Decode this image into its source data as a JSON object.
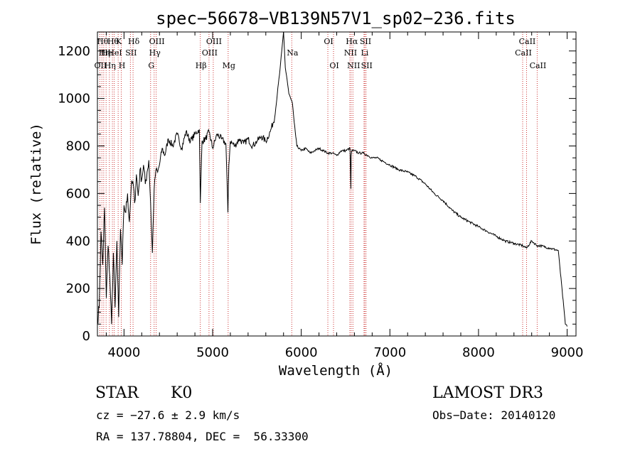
{
  "chart_data": {
    "type": "line",
    "title": "spec−56678−VB139N57V1_sp02−236.fits",
    "xlabel": "Wavelength (Å)",
    "ylabel": "Flux (relative)",
    "xlim": [
      3700,
      9100
    ],
    "ylim": [
      0,
      1280
    ],
    "xticks": [
      4000,
      5000,
      6000,
      7000,
      8000,
      9000
    ],
    "yticks": [
      0,
      200,
      400,
      600,
      800,
      1000,
      1200
    ],
    "grid": false,
    "line_color": "#000000",
    "marker_color": "#cc3333",
    "series": [
      {
        "name": "spectrum",
        "x": [
          3700,
          3720,
          3740,
          3760,
          3780,
          3800,
          3820,
          3840,
          3860,
          3880,
          3900,
          3920,
          3940,
          3960,
          3980,
          4000,
          4020,
          4040,
          4060,
          4080,
          4100,
          4120,
          4140,
          4160,
          4180,
          4200,
          4220,
          4240,
          4260,
          4280,
          4300,
          4320,
          4340,
          4360,
          4380,
          4400,
          4430,
          4460,
          4500,
          4550,
          4600,
          4650,
          4700,
          4750,
          4800,
          4850,
          4861,
          4880,
          4920,
          4960,
          5000,
          5050,
          5100,
          5150,
          5172,
          5183,
          5200,
          5250,
          5300,
          5350,
          5400,
          5450,
          5500,
          5550,
          5600,
          5650,
          5700,
          5730,
          5760,
          5780,
          5800,
          5820,
          5840,
          5860,
          5880,
          5900,
          5920,
          5950,
          6000,
          6050,
          6100,
          6150,
          6200,
          6250,
          6300,
          6350,
          6400,
          6450,
          6500,
          6550,
          6560,
          6563,
          6570,
          6600,
          6650,
          6700,
          6750,
          6800,
          6850,
          6900,
          6950,
          7000,
          7100,
          7200,
          7300,
          7400,
          7500,
          7600,
          7700,
          7800,
          7900,
          8000,
          8100,
          8200,
          8300,
          8400,
          8500,
          8542,
          8600,
          8662,
          8700,
          8800,
          8900,
          8980,
          9000
        ],
        "y": [
          60,
          120,
          440,
          300,
          540,
          160,
          380,
          250,
          50,
          350,
          120,
          400,
          80,
          450,
          300,
          550,
          520,
          600,
          480,
          620,
          650,
          560,
          680,
          590,
          700,
          660,
          720,
          640,
          690,
          740,
          560,
          350,
          620,
          700,
          690,
          720,
          790,
          760,
          830,
          800,
          850,
          790,
          860,
          820,
          850,
          870,
          560,
          820,
          830,
          860,
          790,
          850,
          830,
          810,
          520,
          720,
          820,
          800,
          830,
          810,
          830,
          800,
          820,
          840,
          820,
          860,
          920,
          1020,
          1120,
          1200,
          1280,
          1130,
          1080,
          1020,
          1000,
          980,
          900,
          800,
          780,
          790,
          770,
          780,
          790,
          780,
          770,
          770,
          760,
          780,
          780,
          790,
          620,
          760,
          780,
          780,
          770,
          770,
          760,
          750,
          750,
          740,
          730,
          720,
          700,
          690,
          670,
          640,
          600,
          570,
          530,
          500,
          480,
          460,
          440,
          420,
          400,
          390,
          380,
          370,
          400,
          380,
          380,
          370,
          360,
          50,
          40
        ]
      }
    ],
    "line_markers": [
      {
        "wavelength": 3727,
        "label": "OII",
        "row": 3
      },
      {
        "wavelength": 3750,
        "label": "Hθ",
        "row": 1
      },
      {
        "wavelength": 3771,
        "label": "Hη",
        "row": 2
      },
      {
        "wavelength": 3798,
        "label": "He",
        "row": 2
      },
      {
        "wavelength": 3835,
        "label": "Hη",
        "row": 3
      },
      {
        "wavelength": 3869,
        "label": "Hθ",
        "row": 1
      },
      {
        "wavelength": 3889,
        "label": "HeI",
        "row": 2
      },
      {
        "wavelength": 3934,
        "label": "K",
        "row": 1
      },
      {
        "wavelength": 3969,
        "label": "H",
        "row": 3
      },
      {
        "wavelength": 4072,
        "label": "SII",
        "row": 2
      },
      {
        "wavelength": 4102,
        "label": "Hδ",
        "row": 1
      },
      {
        "wavelength": 4300,
        "label": "G",
        "row": 3
      },
      {
        "wavelength": 4340,
        "label": "Hγ",
        "row": 2
      },
      {
        "wavelength": 4363,
        "label": "OIII",
        "row": 1
      },
      {
        "wavelength": 4861,
        "label": "Hβ",
        "row": 3
      },
      {
        "wavelength": 4959,
        "label": "OIII",
        "row": 2
      },
      {
        "wavelength": 5007,
        "label": "OIII",
        "row": 1
      },
      {
        "wavelength": 5175,
        "label": "Mg",
        "row": 3
      },
      {
        "wavelength": 5893,
        "label": "Na",
        "row": 2
      },
      {
        "wavelength": 6300,
        "label": "OI",
        "row": 1
      },
      {
        "wavelength": 6364,
        "label": "OI",
        "row": 3
      },
      {
        "wavelength": 6548,
        "label": "NII",
        "row": 2
      },
      {
        "wavelength": 6563,
        "label": "Hα",
        "row": 1
      },
      {
        "wavelength": 6583,
        "label": "NII",
        "row": 3
      },
      {
        "wavelength": 6708,
        "label": "Li",
        "row": 2
      },
      {
        "wavelength": 6717,
        "label": "SII",
        "row": 1
      },
      {
        "wavelength": 6731,
        "label": "SII",
        "row": 3
      },
      {
        "wavelength": 8498,
        "label": "CaII",
        "row": 2
      },
      {
        "wavelength": 8542,
        "label": "CaII",
        "row": 1
      },
      {
        "wavelength": 8662,
        "label": "CaII",
        "row": 3
      }
    ]
  },
  "info": {
    "class": "STAR",
    "subclass": "K0",
    "survey": "LAMOST DR3",
    "cz": "cz = −27.6 ± 2.9 km/s",
    "obs_date": "Obs−Date: 20140120",
    "coords": "RA = 137.78804, DEC =  56.33300"
  }
}
